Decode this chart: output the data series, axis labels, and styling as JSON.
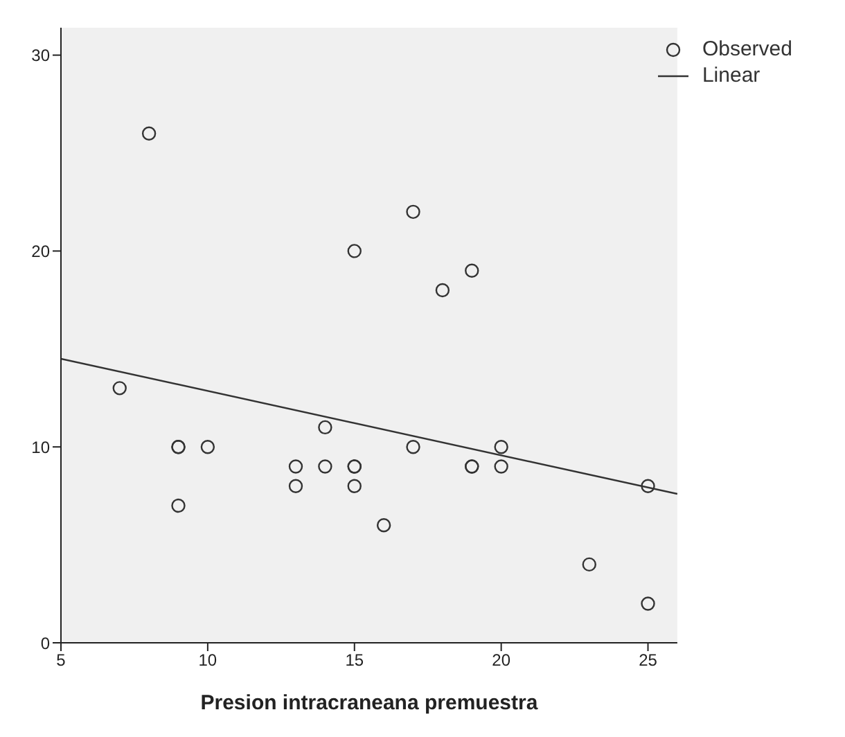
{
  "chart_data": {
    "type": "scatter",
    "xlabel": "Presion intracraneana premuestra",
    "xlim": [
      5,
      26
    ],
    "xticks": [
      5,
      10,
      15,
      20,
      25
    ],
    "ylim": [
      0,
      31.4
    ],
    "yticks": [
      0,
      10,
      20,
      30
    ],
    "legend": "top right",
    "series": [
      {
        "name": "Observed",
        "marker": "circle",
        "color": "#333333",
        "x": [
          7,
          8,
          9,
          9,
          9,
          10,
          13,
          13,
          14,
          14,
          15,
          15,
          15,
          15,
          16,
          17,
          17,
          18,
          19,
          19,
          19,
          20,
          20,
          23,
          25,
          25
        ],
        "values": [
          13,
          26,
          10,
          10,
          7,
          10,
          9,
          8,
          11,
          9,
          20,
          9,
          9,
          8,
          6,
          22,
          10,
          18,
          19,
          9,
          9,
          10,
          9,
          4,
          8,
          2
        ]
      },
      {
        "name": "Linear",
        "type": "line",
        "color": "#333333",
        "x": [
          5,
          26
        ],
        "values": [
          14.5,
          7.6
        ]
      }
    ]
  }
}
